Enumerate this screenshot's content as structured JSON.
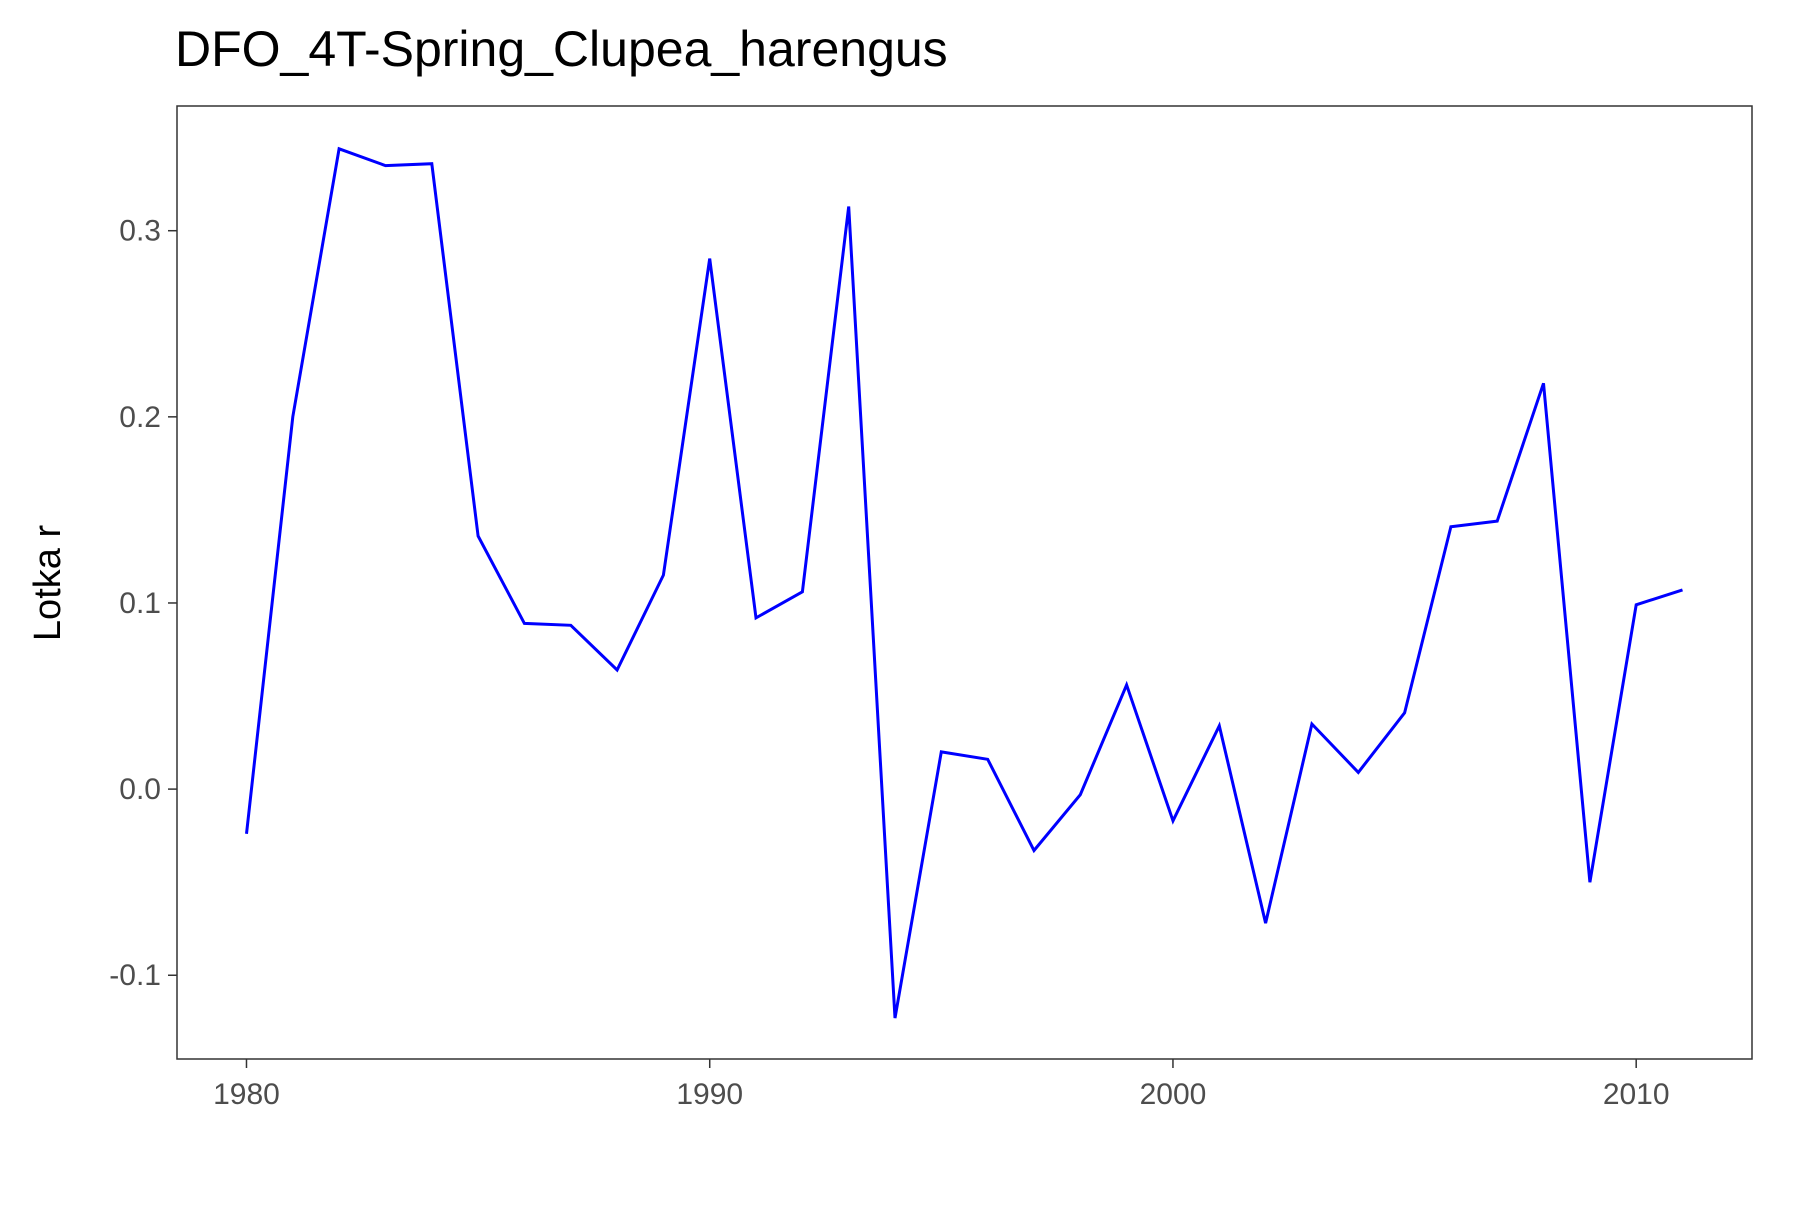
{
  "chart_data": {
    "type": "line",
    "title": "DFO_4T-Spring_Clupea_harengus",
    "xlabel": "",
    "ylabel": "Lotka r",
    "xlim": [
      1978.5,
      2012.5
    ],
    "ylim": [
      -0.145,
      0.367
    ],
    "xticks": [
      1980,
      1990,
      2000,
      2010
    ],
    "xtick_labels": [
      "1980",
      "1990",
      "2000",
      "2010"
    ],
    "yticks": [
      -0.1,
      0.0,
      0.1,
      0.2,
      0.3
    ],
    "ytick_labels": [
      "-0.1",
      "0.0",
      "0.1",
      "0.2",
      "0.3"
    ],
    "grid": false,
    "line_color": "#0000ff",
    "x": [
      1980,
      1981,
      1982,
      1983,
      1984,
      1985,
      1986,
      1987,
      1988,
      1989,
      1990,
      1991,
      1992,
      1993,
      1994,
      1995,
      1996,
      1997,
      1998,
      1999,
      2000,
      2001,
      2002,
      2003,
      2004,
      2005,
      2006,
      2007,
      2008,
      2009,
      2010,
      2011
    ],
    "y": [
      -0.024,
      0.2,
      0.344,
      0.335,
      0.336,
      0.136,
      0.089,
      0.088,
      0.064,
      0.115,
      0.285,
      0.092,
      0.106,
      0.313,
      -0.123,
      0.02,
      0.016,
      -0.033,
      -0.003,
      0.056,
      -0.017,
      0.034,
      -0.072,
      0.035,
      0.009,
      0.041,
      0.141,
      0.144,
      0.218,
      -0.05,
      0.099,
      0.107
    ]
  }
}
